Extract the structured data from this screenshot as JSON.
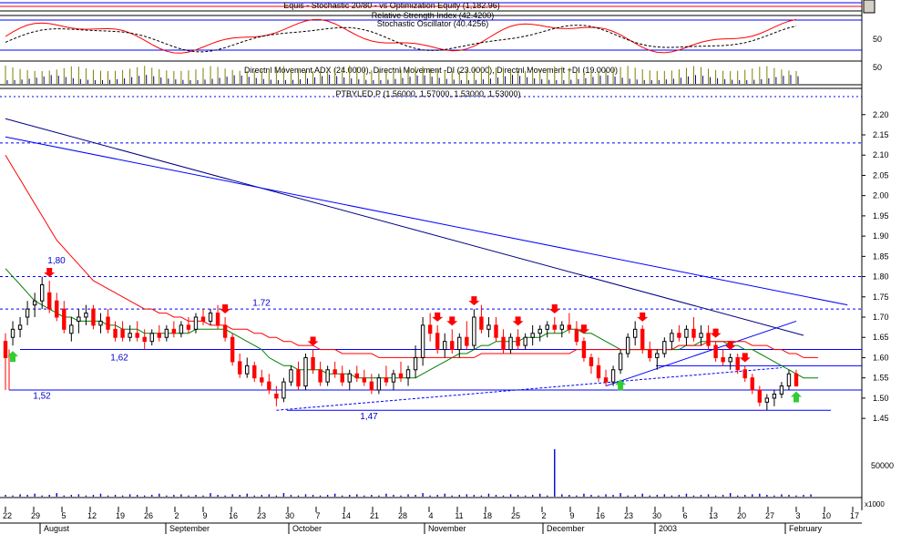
{
  "panels": {
    "top_title": "Equis - Stochastic 20/80 - vs Optimization Equity (1,182.96)",
    "rsi_title": "Relative Strength Index (42.4200)",
    "stoch_title": "Stochastic Oscillator (40.4256)",
    "rsi_level": "50",
    "dmi_title": "Directnl Movement ADX (24.0000), Directnl Movement -DI (23.0000), Directnl Movement +DI (19.0000)",
    "dmi_level": "50",
    "price_title": "PTBYLED P (1.56000, 1.57000, 1.53000, 1.53000)",
    "volume_label": "50000",
    "volume_unit": "x1000"
  },
  "annotations": [
    {
      "text": "1,80",
      "price": 1.84
    },
    {
      "text": "1.72",
      "price": 1.735
    },
    {
      "text": "1,62",
      "price": 1.6
    },
    {
      "text": "1,52",
      "price": 1.505
    },
    {
      "text": "1,47",
      "price": 1.455
    }
  ],
  "chart_data": {
    "type": "candlestick",
    "title": "PTBYLED P (1.56000, 1.57000, 1.53000, 1.53000)",
    "y_ticks": [
      2.2,
      2.15,
      2.1,
      2.05,
      2.0,
      1.95,
      1.9,
      1.85,
      1.8,
      1.75,
      1.7,
      1.65,
      1.6,
      1.55,
      1.5,
      1.45
    ],
    "ylim": [
      1.43,
      2.24
    ],
    "x_day_ticks": [
      "22",
      "29",
      "5",
      "12",
      "19",
      "26",
      "2",
      "9",
      "16",
      "23",
      "30",
      "7",
      "14",
      "21",
      "28",
      "4",
      "11",
      "18",
      "25",
      "2",
      "9",
      "16",
      "23",
      "30",
      "6",
      "13",
      "20",
      "27",
      "3",
      "10",
      "17"
    ],
    "x_month_labels": [
      "August",
      "September",
      "October",
      "November",
      "December",
      "2003",
      "February"
    ],
    "horizontal_levels": [
      1.8,
      1.72,
      1.62,
      1.52,
      1.47
    ],
    "candles": [
      {
        "o": 1.64,
        "h": 1.66,
        "l": 1.52,
        "c": 1.6
      },
      {
        "o": 1.65,
        "h": 1.69,
        "l": 1.63,
        "c": 1.67
      },
      {
        "o": 1.67,
        "h": 1.7,
        "l": 1.65,
        "c": 1.68
      },
      {
        "o": 1.7,
        "h": 1.74,
        "l": 1.68,
        "c": 1.72
      },
      {
        "o": 1.73,
        "h": 1.76,
        "l": 1.7,
        "c": 1.74
      },
      {
        "o": 1.74,
        "h": 1.8,
        "l": 1.72,
        "c": 1.78
      },
      {
        "o": 1.76,
        "h": 1.79,
        "l": 1.71,
        "c": 1.72
      },
      {
        "o": 1.74,
        "h": 1.76,
        "l": 1.69,
        "c": 1.7
      },
      {
        "o": 1.72,
        "h": 1.74,
        "l": 1.66,
        "c": 1.67
      },
      {
        "o": 1.66,
        "h": 1.7,
        "l": 1.64,
        "c": 1.68
      },
      {
        "o": 1.69,
        "h": 1.72,
        "l": 1.66,
        "c": 1.7
      },
      {
        "o": 1.7,
        "h": 1.73,
        "l": 1.68,
        "c": 1.71
      },
      {
        "o": 1.72,
        "h": 1.73,
        "l": 1.67,
        "c": 1.68
      },
      {
        "o": 1.68,
        "h": 1.71,
        "l": 1.66,
        "c": 1.69
      },
      {
        "o": 1.7,
        "h": 1.72,
        "l": 1.66,
        "c": 1.67
      },
      {
        "o": 1.67,
        "h": 1.69,
        "l": 1.64,
        "c": 1.65
      },
      {
        "o": 1.67,
        "h": 1.69,
        "l": 1.64,
        "c": 1.65
      },
      {
        "o": 1.65,
        "h": 1.68,
        "l": 1.64,
        "c": 1.66
      },
      {
        "o": 1.66,
        "h": 1.69,
        "l": 1.64,
        "c": 1.65
      },
      {
        "o": 1.65,
        "h": 1.67,
        "l": 1.62,
        "c": 1.64
      },
      {
        "o": 1.64,
        "h": 1.67,
        "l": 1.63,
        "c": 1.66
      },
      {
        "o": 1.66,
        "h": 1.68,
        "l": 1.64,
        "c": 1.65
      },
      {
        "o": 1.65,
        "h": 1.68,
        "l": 1.64,
        "c": 1.67
      },
      {
        "o": 1.67,
        "h": 1.69,
        "l": 1.65,
        "c": 1.66
      },
      {
        "o": 1.66,
        "h": 1.69,
        "l": 1.65,
        "c": 1.68
      },
      {
        "o": 1.68,
        "h": 1.7,
        "l": 1.66,
        "c": 1.67
      },
      {
        "o": 1.67,
        "h": 1.71,
        "l": 1.66,
        "c": 1.7
      },
      {
        "o": 1.7,
        "h": 1.72,
        "l": 1.68,
        "c": 1.69
      },
      {
        "o": 1.69,
        "h": 1.72,
        "l": 1.68,
        "c": 1.71
      },
      {
        "o": 1.71,
        "h": 1.73,
        "l": 1.67,
        "c": 1.68
      },
      {
        "o": 1.68,
        "h": 1.7,
        "l": 1.64,
        "c": 1.65
      },
      {
        "o": 1.65,
        "h": 1.66,
        "l": 1.58,
        "c": 1.59
      },
      {
        "o": 1.59,
        "h": 1.61,
        "l": 1.55,
        "c": 1.56
      },
      {
        "o": 1.56,
        "h": 1.6,
        "l": 1.55,
        "c": 1.58
      },
      {
        "o": 1.58,
        "h": 1.59,
        "l": 1.54,
        "c": 1.55
      },
      {
        "o": 1.55,
        "h": 1.57,
        "l": 1.53,
        "c": 1.54
      },
      {
        "o": 1.54,
        "h": 1.56,
        "l": 1.51,
        "c": 1.52
      },
      {
        "o": 1.51,
        "h": 1.53,
        "l": 1.48,
        "c": 1.5
      },
      {
        "o": 1.5,
        "h": 1.55,
        "l": 1.49,
        "c": 1.54
      },
      {
        "o": 1.54,
        "h": 1.58,
        "l": 1.53,
        "c": 1.57
      },
      {
        "o": 1.57,
        "h": 1.59,
        "l": 1.52,
        "c": 1.53
      },
      {
        "o": 1.53,
        "h": 1.61,
        "l": 1.52,
        "c": 1.6
      },
      {
        "o": 1.6,
        "h": 1.62,
        "l": 1.56,
        "c": 1.57
      },
      {
        "o": 1.57,
        "h": 1.59,
        "l": 1.53,
        "c": 1.54
      },
      {
        "o": 1.54,
        "h": 1.58,
        "l": 1.53,
        "c": 1.57
      },
      {
        "o": 1.57,
        "h": 1.59,
        "l": 1.55,
        "c": 1.56
      },
      {
        "o": 1.56,
        "h": 1.58,
        "l": 1.53,
        "c": 1.54
      },
      {
        "o": 1.54,
        "h": 1.57,
        "l": 1.52,
        "c": 1.56
      },
      {
        "o": 1.56,
        "h": 1.58,
        "l": 1.54,
        "c": 1.55
      },
      {
        "o": 1.55,
        "h": 1.57,
        "l": 1.53,
        "c": 1.54
      },
      {
        "o": 1.54,
        "h": 1.56,
        "l": 1.51,
        "c": 1.52
      },
      {
        "o": 1.52,
        "h": 1.56,
        "l": 1.51,
        "c": 1.55
      },
      {
        "o": 1.55,
        "h": 1.58,
        "l": 1.53,
        "c": 1.54
      },
      {
        "o": 1.54,
        "h": 1.57,
        "l": 1.52,
        "c": 1.56
      },
      {
        "o": 1.56,
        "h": 1.59,
        "l": 1.54,
        "c": 1.55
      },
      {
        "o": 1.55,
        "h": 1.58,
        "l": 1.53,
        "c": 1.57
      },
      {
        "o": 1.57,
        "h": 1.63,
        "l": 1.55,
        "c": 1.6
      },
      {
        "o": 1.6,
        "h": 1.7,
        "l": 1.58,
        "c": 1.68
      },
      {
        "o": 1.68,
        "h": 1.71,
        "l": 1.64,
        "c": 1.66
      },
      {
        "o": 1.66,
        "h": 1.68,
        "l": 1.61,
        "c": 1.62
      },
      {
        "o": 1.62,
        "h": 1.66,
        "l": 1.6,
        "c": 1.64
      },
      {
        "o": 1.64,
        "h": 1.67,
        "l": 1.61,
        "c": 1.62
      },
      {
        "o": 1.62,
        "h": 1.66,
        "l": 1.6,
        "c": 1.65
      },
      {
        "o": 1.65,
        "h": 1.69,
        "l": 1.62,
        "c": 1.63
      },
      {
        "o": 1.63,
        "h": 1.72,
        "l": 1.62,
        "c": 1.7
      },
      {
        "o": 1.7,
        "h": 1.73,
        "l": 1.66,
        "c": 1.67
      },
      {
        "o": 1.67,
        "h": 1.7,
        "l": 1.65,
        "c": 1.68
      },
      {
        "o": 1.68,
        "h": 1.7,
        "l": 1.64,
        "c": 1.65
      },
      {
        "o": 1.65,
        "h": 1.67,
        "l": 1.61,
        "c": 1.62
      },
      {
        "o": 1.62,
        "h": 1.66,
        "l": 1.61,
        "c": 1.65
      },
      {
        "o": 1.65,
        "h": 1.67,
        "l": 1.62,
        "c": 1.63
      },
      {
        "o": 1.63,
        "h": 1.66,
        "l": 1.62,
        "c": 1.65
      },
      {
        "o": 1.65,
        "h": 1.68,
        "l": 1.63,
        "c": 1.66
      },
      {
        "o": 1.66,
        "h": 1.68,
        "l": 1.64,
        "c": 1.67
      },
      {
        "o": 1.67,
        "h": 1.69,
        "l": 1.65,
        "c": 1.68
      },
      {
        "o": 1.68,
        "h": 1.7,
        "l": 1.66,
        "c": 1.67
      },
      {
        "o": 1.67,
        "h": 1.69,
        "l": 1.65,
        "c": 1.68
      },
      {
        "o": 1.68,
        "h": 1.71,
        "l": 1.66,
        "c": 1.67
      },
      {
        "o": 1.67,
        "h": 1.69,
        "l": 1.63,
        "c": 1.64
      },
      {
        "o": 1.64,
        "h": 1.65,
        "l": 1.59,
        "c": 1.6
      },
      {
        "o": 1.6,
        "h": 1.61,
        "l": 1.56,
        "c": 1.58
      },
      {
        "o": 1.58,
        "h": 1.6,
        "l": 1.54,
        "c": 1.55
      },
      {
        "o": 1.55,
        "h": 1.57,
        "l": 1.53,
        "c": 1.54
      },
      {
        "o": 1.54,
        "h": 1.58,
        "l": 1.53,
        "c": 1.57
      },
      {
        "o": 1.57,
        "h": 1.62,
        "l": 1.56,
        "c": 1.61
      },
      {
        "o": 1.61,
        "h": 1.66,
        "l": 1.6,
        "c": 1.65
      },
      {
        "o": 1.65,
        "h": 1.69,
        "l": 1.63,
        "c": 1.67
      },
      {
        "o": 1.67,
        "h": 1.68,
        "l": 1.61,
        "c": 1.62
      },
      {
        "o": 1.62,
        "h": 1.64,
        "l": 1.59,
        "c": 1.6
      },
      {
        "o": 1.6,
        "h": 1.62,
        "l": 1.57,
        "c": 1.61
      },
      {
        "o": 1.61,
        "h": 1.65,
        "l": 1.6,
        "c": 1.64
      },
      {
        "o": 1.64,
        "h": 1.67,
        "l": 1.62,
        "c": 1.66
      },
      {
        "o": 1.66,
        "h": 1.68,
        "l": 1.64,
        "c": 1.65
      },
      {
        "o": 1.65,
        "h": 1.68,
        "l": 1.63,
        "c": 1.67
      },
      {
        "o": 1.67,
        "h": 1.7,
        "l": 1.64,
        "c": 1.65
      },
      {
        "o": 1.65,
        "h": 1.68,
        "l": 1.63,
        "c": 1.66
      },
      {
        "o": 1.66,
        "h": 1.68,
        "l": 1.62,
        "c": 1.63
      },
      {
        "o": 1.63,
        "h": 1.64,
        "l": 1.59,
        "c": 1.6
      },
      {
        "o": 1.6,
        "h": 1.62,
        "l": 1.58,
        "c": 1.59
      },
      {
        "o": 1.59,
        "h": 1.61,
        "l": 1.57,
        "c": 1.6
      },
      {
        "o": 1.6,
        "h": 1.61,
        "l": 1.56,
        "c": 1.57
      },
      {
        "o": 1.57,
        "h": 1.58,
        "l": 1.54,
        "c": 1.55
      },
      {
        "o": 1.55,
        "h": 1.56,
        "l": 1.51,
        "c": 1.52
      },
      {
        "o": 1.52,
        "h": 1.53,
        "l": 1.48,
        "c": 1.49
      },
      {
        "o": 1.49,
        "h": 1.51,
        "l": 1.47,
        "c": 1.5
      },
      {
        "o": 1.5,
        "h": 1.52,
        "l": 1.48,
        "c": 1.51
      },
      {
        "o": 1.51,
        "h": 1.54,
        "l": 1.5,
        "c": 1.53
      },
      {
        "o": 1.53,
        "h": 1.57,
        "l": 1.52,
        "c": 1.56
      },
      {
        "o": 1.56,
        "h": 1.57,
        "l": 1.53,
        "c": 1.53
      }
    ],
    "moving_averages": [
      {
        "color": "#008000",
        "values": [
          1.82,
          1.8,
          1.78,
          1.76,
          1.74,
          1.73,
          1.72,
          1.71,
          1.7,
          1.7,
          1.69,
          1.69,
          1.69,
          1.69,
          1.68,
          1.68,
          1.67,
          1.67,
          1.67,
          1.66,
          1.66,
          1.66,
          1.66,
          1.66,
          1.66,
          1.66,
          1.67,
          1.67,
          1.67,
          1.67,
          1.67,
          1.66,
          1.65,
          1.64,
          1.63,
          1.62,
          1.6,
          1.59,
          1.58,
          1.58,
          1.57,
          1.57,
          1.57,
          1.57,
          1.56,
          1.56,
          1.56,
          1.56,
          1.55,
          1.55,
          1.55,
          1.55,
          1.55,
          1.55,
          1.55,
          1.55,
          1.55,
          1.56,
          1.57,
          1.58,
          1.59,
          1.6,
          1.61,
          1.61,
          1.62,
          1.63,
          1.63,
          1.64,
          1.64,
          1.64,
          1.64,
          1.65,
          1.65,
          1.65,
          1.66,
          1.66,
          1.66,
          1.67,
          1.67,
          1.66,
          1.66,
          1.65,
          1.64,
          1.63,
          1.62,
          1.62,
          1.62,
          1.62,
          1.62,
          1.62,
          1.62,
          1.62,
          1.62,
          1.63,
          1.63,
          1.64,
          1.64,
          1.64,
          1.64,
          1.63,
          1.63,
          1.62,
          1.62,
          1.61,
          1.6,
          1.59,
          1.58,
          1.57,
          1.56,
          1.55,
          1.55,
          1.55
        ]
      },
      {
        "color": "#ff0000",
        "values": [
          2.1,
          2.07,
          2.04,
          2.01,
          1.98,
          1.95,
          1.92,
          1.89,
          1.87,
          1.85,
          1.83,
          1.81,
          1.79,
          1.78,
          1.77,
          1.76,
          1.75,
          1.74,
          1.73,
          1.72,
          1.72,
          1.71,
          1.71,
          1.7,
          1.7,
          1.69,
          1.69,
          1.69,
          1.68,
          1.68,
          1.68,
          1.67,
          1.67,
          1.67,
          1.66,
          1.66,
          1.65,
          1.65,
          1.64,
          1.64,
          1.63,
          1.63,
          1.63,
          1.62,
          1.62,
          1.62,
          1.61,
          1.61,
          1.61,
          1.61,
          1.61,
          1.6,
          1.6,
          1.6,
          1.6,
          1.6,
          1.6,
          1.6,
          1.6,
          1.6,
          1.6,
          1.6,
          1.6,
          1.6,
          1.6,
          1.61,
          1.61,
          1.61,
          1.61,
          1.61,
          1.61,
          1.61,
          1.61,
          1.61,
          1.61,
          1.61,
          1.61,
          1.61,
          1.62,
          1.62,
          1.62,
          1.62,
          1.62,
          1.62,
          1.62,
          1.62,
          1.62,
          1.62,
          1.62,
          1.62,
          1.62,
          1.62,
          1.63,
          1.63,
          1.63,
          1.63,
          1.64,
          1.64,
          1.64,
          1.64,
          1.64,
          1.64,
          1.63,
          1.63,
          1.63,
          1.62,
          1.62,
          1.61,
          1.61,
          1.6,
          1.6,
          1.6
        ]
      }
    ],
    "trend_lines": [
      {
        "color": "#000080",
        "from": [
          0,
          2.19
        ],
        "to": [
          109,
          1.655
        ],
        "dash": false
      },
      {
        "color": "#0000ff",
        "from": [
          0,
          2.145
        ],
        "to": [
          115,
          1.73
        ],
        "dash": false
      },
      {
        "color": "#0000ff",
        "from": [
          37,
          1.47
        ],
        "to": [
          106,
          1.575
        ],
        "dash": true
      },
      {
        "color": "#0000ff",
        "from": [
          82,
          1.53
        ],
        "to": [
          108,
          1.69
        ],
        "dash": false
      }
    ],
    "sell_arrows": [
      6,
      30,
      42,
      59,
      61,
      64,
      70,
      75,
      79,
      87,
      97,
      99,
      101
    ],
    "buy_arrows": [
      1,
      84,
      108
    ],
    "volume": [
      3,
      2,
      4,
      3,
      5,
      2,
      3,
      6,
      2,
      3,
      4,
      2,
      3,
      5,
      2,
      3,
      2,
      4,
      3,
      2,
      3,
      5,
      2,
      3,
      4,
      2,
      3,
      2,
      6,
      3,
      2,
      4,
      3,
      5,
      2,
      3,
      4,
      2,
      6,
      3,
      2,
      4,
      3,
      2,
      3,
      5,
      2,
      3,
      4,
      2,
      3,
      2,
      5,
      3,
      2,
      4,
      3,
      6,
      2,
      3,
      5,
      2,
      3,
      4,
      3,
      2,
      5,
      3,
      2,
      4,
      3,
      2,
      3,
      5,
      2,
      80,
      4,
      3,
      2,
      5,
      3,
      2,
      4,
      3,
      6,
      2,
      3,
      5,
      2,
      3,
      4,
      2,
      3,
      5,
      2,
      3,
      4,
      2,
      3,
      6,
      2,
      3,
      4,
      5,
      3,
      2,
      4,
      3,
      2,
      3,
      4
    ]
  }
}
